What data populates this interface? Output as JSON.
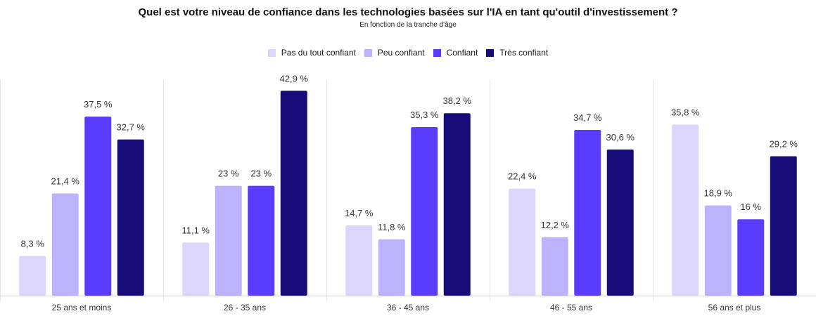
{
  "chart_data": {
    "type": "bar",
    "title": "Quel est votre niveau de confiance dans les technologies basées sur l'IA en tant qu'outil d'investissement ?",
    "subtitle": "En fonction de la tranche d'âge",
    "categories": [
      "25 ans et moins",
      "26 - 35 ans",
      "36 - 45 ans",
      "46 - 55 ans",
      "56 ans et plus"
    ],
    "series": [
      {
        "name": "Pas du tout confiant",
        "color": "#dcd6fc",
        "values": [
          8.3,
          11.1,
          14.7,
          22.4,
          35.8
        ],
        "labels": [
          "8,3 %",
          "11,1 %",
          "14,7 %",
          "22,4 %",
          "35,8 %"
        ]
      },
      {
        "name": "Peu confiant",
        "color": "#bcb3fc",
        "values": [
          21.4,
          23,
          11.8,
          12.2,
          18.9
        ],
        "labels": [
          "21,4 %",
          "23 %",
          "11,8 %",
          "12,2 %",
          "18,9 %"
        ]
      },
      {
        "name": "Confiant",
        "color": "#5a3cfc",
        "values": [
          37.5,
          23,
          35.3,
          34.7,
          16
        ],
        "labels": [
          "37,5 %",
          "23 %",
          "35,3 %",
          "34,7 %",
          "16 %"
        ]
      },
      {
        "name": "Très confiant",
        "color": "#170c78",
        "values": [
          32.7,
          42.9,
          38.2,
          30.6,
          29.2
        ],
        "labels": [
          "32,7 %",
          "42,9 %",
          "38,2 %",
          "30,6 %",
          "29,2 %"
        ]
      }
    ],
    "legend_position": "top",
    "grid": false
  }
}
